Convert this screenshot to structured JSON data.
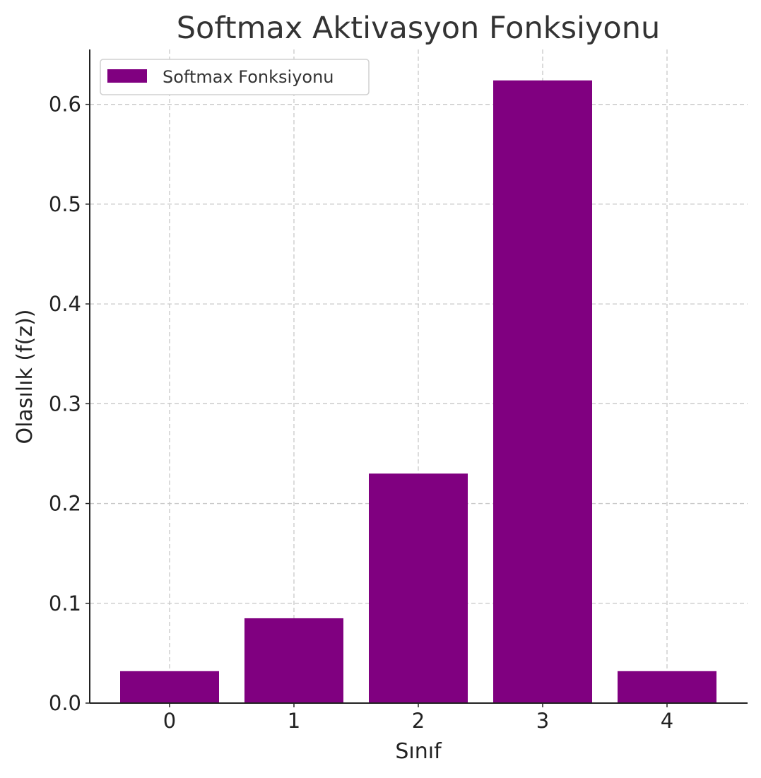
{
  "chart_data": {
    "type": "bar",
    "title": "Softmax Aktivasyon Fonksiyonu",
    "xlabel": "Sınıf",
    "ylabel": "Olasılık (f(z))",
    "categories": [
      "0",
      "1",
      "2",
      "3",
      "4"
    ],
    "series": [
      {
        "name": "Softmax Fonksiyonu",
        "values": [
          0.032,
          0.085,
          0.23,
          0.624,
          0.032
        ],
        "color": "#800080"
      }
    ],
    "ylim": [
      0,
      0.655
    ],
    "yticks": [
      0.0,
      0.1,
      0.2,
      0.3,
      0.4,
      0.5,
      0.6
    ],
    "ytick_labels": [
      "0.0",
      "0.1",
      "0.2",
      "0.3",
      "0.4",
      "0.5",
      "0.6"
    ],
    "grid": true,
    "legend_position": "top-left"
  }
}
